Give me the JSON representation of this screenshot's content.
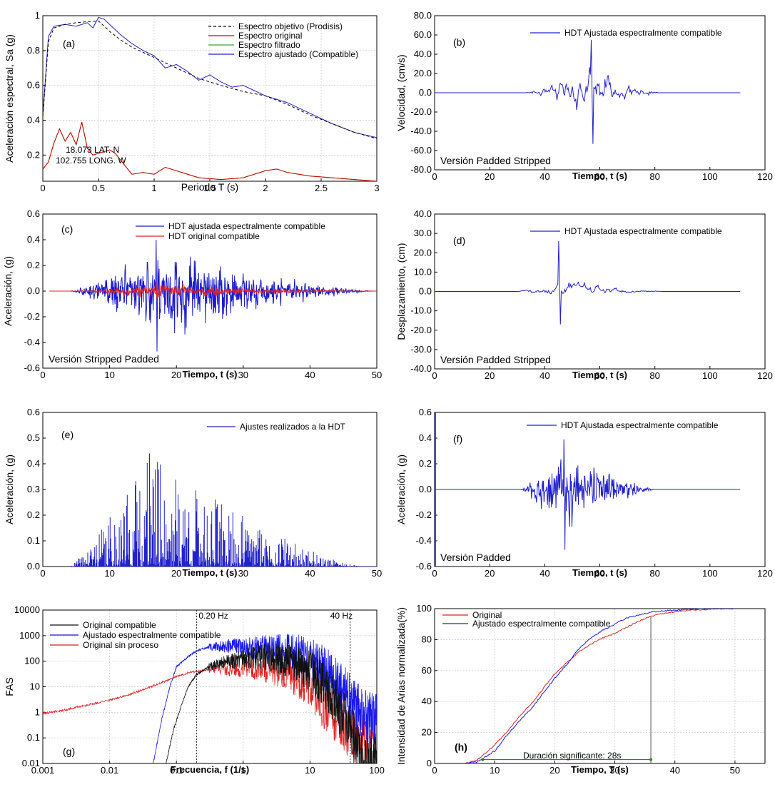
{
  "chart_data": [
    {
      "id": "a",
      "type": "line",
      "panel_label": "(a)",
      "xlabel": "Periodo T (s)",
      "ylabel": "Aceleración espectral, Sa (g)",
      "xlim": [
        0,
        3
      ],
      "ylim": [
        0.05,
        1.0
      ],
      "xticks": [
        0,
        0.5,
        1,
        1.5,
        2,
        2.5,
        3
      ],
      "xtick_labels": [
        "0",
        "0.5",
        "1",
        "1.5",
        "2",
        "2.5",
        "3"
      ],
      "yticks": [
        0.2,
        0.4,
        0.6,
        0.8,
        1
      ],
      "ytick_labels": [
        "0.2",
        "0.4",
        "0.6",
        "0.8",
        "1"
      ],
      "grid": true,
      "legend_position": "top-right",
      "annotations": [
        "18.073 LAT. N",
        "102.755 LONG. W"
      ],
      "series": [
        {
          "name": "Espectro objetivo (Prodisis)",
          "color": "#000000",
          "dash": true,
          "x": [
            0.0,
            0.05,
            0.1,
            0.2,
            0.3,
            0.4,
            0.5,
            0.6,
            0.7,
            0.8,
            0.9,
            1.0,
            1.2,
            1.4,
            1.6,
            1.8,
            2.0,
            2.2,
            2.4,
            2.6,
            2.8,
            3.0
          ],
          "y": [
            0.42,
            0.85,
            0.93,
            0.95,
            0.96,
            0.965,
            0.97,
            0.91,
            0.86,
            0.82,
            0.79,
            0.76,
            0.7,
            0.64,
            0.6,
            0.565,
            0.54,
            0.49,
            0.43,
            0.38,
            0.33,
            0.295
          ]
        },
        {
          "name": "Espectro original",
          "color": "#cc0000",
          "dash": false,
          "x": [
            0.0,
            0.05,
            0.1,
            0.15,
            0.2,
            0.25,
            0.3,
            0.35,
            0.4,
            0.45,
            0.5,
            0.55,
            0.6,
            0.65,
            0.7,
            0.8,
            0.9,
            1.0,
            1.1,
            1.2,
            1.4,
            1.6,
            1.8,
            2.0,
            2.1,
            2.2,
            2.4,
            2.6,
            2.8,
            3.0
          ],
          "y": [
            0.12,
            0.16,
            0.27,
            0.35,
            0.28,
            0.33,
            0.26,
            0.39,
            0.24,
            0.2,
            0.21,
            0.22,
            0.23,
            0.21,
            0.17,
            0.09,
            0.1,
            0.09,
            0.13,
            0.11,
            0.07,
            0.06,
            0.07,
            0.11,
            0.12,
            0.1,
            0.08,
            0.07,
            0.06,
            0.05
          ]
        },
        {
          "name": "Espectro filtrado",
          "color": "#33aa33",
          "dash": false,
          "x": [
            0.0,
            0.05,
            0.1,
            0.15,
            0.2,
            0.25,
            0.3,
            0.35,
            0.4,
            0.45,
            0.5,
            0.55,
            0.6,
            0.65,
            0.7,
            0.8,
            0.9,
            1.0,
            1.1,
            1.2,
            1.4,
            1.6,
            1.8,
            2.0,
            2.1,
            2.2,
            2.4,
            2.6,
            2.8,
            3.0
          ],
          "y": [
            0.12,
            0.16,
            0.27,
            0.35,
            0.28,
            0.33,
            0.26,
            0.39,
            0.24,
            0.2,
            0.21,
            0.22,
            0.23,
            0.21,
            0.17,
            0.09,
            0.1,
            0.09,
            0.13,
            0.11,
            0.07,
            0.06,
            0.07,
            0.11,
            0.12,
            0.1,
            0.08,
            0.07,
            0.06,
            0.05
          ]
        },
        {
          "name": "Espectro ajustado (Compatible)",
          "color": "#2222cc",
          "dash": false,
          "x": [
            0.0,
            0.05,
            0.1,
            0.2,
            0.3,
            0.4,
            0.45,
            0.5,
            0.55,
            0.6,
            0.7,
            0.8,
            0.9,
            1.0,
            1.1,
            1.2,
            1.3,
            1.4,
            1.5,
            1.6,
            1.7,
            1.8,
            1.9,
            2.0,
            2.2,
            2.4,
            2.6,
            2.8,
            3.0
          ],
          "y": [
            0.42,
            0.88,
            0.94,
            0.95,
            0.94,
            0.96,
            0.93,
            0.99,
            0.98,
            0.95,
            0.89,
            0.84,
            0.8,
            0.77,
            0.7,
            0.72,
            0.68,
            0.63,
            0.66,
            0.62,
            0.59,
            0.6,
            0.57,
            0.54,
            0.5,
            0.44,
            0.38,
            0.33,
            0.3
          ]
        }
      ]
    },
    {
      "id": "b",
      "type": "line",
      "panel_label": "(b)",
      "xlabel": "Tiempo, t (s)",
      "ylabel": "Velocidad, (cm/s)",
      "xlim": [
        0,
        120
      ],
      "ylim": [
        -80,
        80
      ],
      "xticks": [
        0,
        20,
        40,
        60,
        80,
        100,
        120
      ],
      "xtick_labels": [
        "0",
        "20",
        "40",
        "60",
        "80",
        "100",
        "120"
      ],
      "yticks": [
        -80,
        -60,
        -40,
        -20,
        0,
        20,
        40,
        60,
        80
      ],
      "ytick_labels": [
        "-80.0",
        "-60.0",
        "-40.0",
        "-20.0",
        "0.0",
        "20.0",
        "40.0",
        "60.0",
        "80.0"
      ],
      "grid": false,
      "legend_position": "top-right",
      "annotation": "Versión Padded Stripped",
      "signal": {
        "t0": 0,
        "t1": 111,
        "active_start": 33,
        "active_end": 83,
        "peak_time": 57,
        "peak": 55,
        "min": -53,
        "seed": 11
      },
      "series": [
        {
          "name": "HDT Ajustada espectralmente compatible",
          "color": "#2222cc"
        }
      ]
    },
    {
      "id": "c",
      "type": "line",
      "panel_label": "(c)",
      "xlabel": "Tiempo, t (s)",
      "ylabel": "Aceleración, (g)",
      "xlim": [
        0,
        50
      ],
      "ylim": [
        -0.6,
        0.6
      ],
      "xticks": [
        0,
        10,
        20,
        30,
        40,
        50
      ],
      "xtick_labels": [
        "0",
        "10",
        "20",
        "30",
        "40",
        "50"
      ],
      "yticks": [
        -0.6,
        -0.4,
        -0.2,
        0,
        0.2,
        0.4,
        0.6
      ],
      "ytick_labels": [
        "-0.6",
        "-0.4",
        "-0.2",
        "0.0",
        "0.2",
        "0.4",
        "0.6"
      ],
      "grid": false,
      "legend_position": "top-right",
      "annotation": "Versión Stripped Padded",
      "series": [
        {
          "name": "HDT ajustada espectralmente compatible",
          "color": "#1a1acc",
          "peak": 0.4,
          "min": -0.47,
          "seed": 21
        },
        {
          "name": "HDT original compatible",
          "color": "#dd2222",
          "peak": 0.07,
          "min": -0.07,
          "seed": 22
        }
      ],
      "signal": {
        "t0": 1,
        "t1": 50,
        "active_start": 4,
        "active_end": 50,
        "peak_time": 17
      }
    },
    {
      "id": "d",
      "type": "line",
      "panel_label": "(d)",
      "xlabel": "Tiempo, t (s)",
      "ylabel": "Desplazamiento, (cm)",
      "xlim": [
        0,
        120
      ],
      "ylim": [
        -40,
        40
      ],
      "xticks": [
        0,
        20,
        40,
        60,
        80,
        100,
        120
      ],
      "xtick_labels": [
        "0",
        "20",
        "40",
        "60",
        "80",
        "100",
        "120"
      ],
      "yticks": [
        -40,
        -30,
        -20,
        -10,
        0,
        10,
        20,
        30,
        40
      ],
      "ytick_labels": [
        "-40.0",
        "-30.0",
        "-20.0",
        "-10.0",
        "0.0",
        "10.0",
        "20.0",
        "30.0",
        "40.0"
      ],
      "grid": false,
      "legend_position": "top-right",
      "annotation": "Versión Padded Stripped",
      "signal": {
        "t0": 0,
        "t1": 111,
        "active_start": 30,
        "active_end": 84,
        "peak_time": 45,
        "peak": 26,
        "min": -17,
        "seed": 31
      },
      "series": [
        {
          "name": "HDT Ajustada espectralmente compatible",
          "color": "#2222cc"
        }
      ]
    },
    {
      "id": "e",
      "type": "bar",
      "panel_label": "(e)",
      "xlabel": "Tiempo, t (s)",
      "ylabel": "Aceleración, (g)",
      "xlim": [
        0,
        50
      ],
      "ylim": [
        0,
        0.6
      ],
      "xticks": [
        0,
        10,
        20,
        30,
        40,
        50
      ],
      "xtick_labels": [
        "0",
        "10",
        "20",
        "30",
        "40",
        "50"
      ],
      "yticks": [
        0,
        0.1,
        0.2,
        0.3,
        0.4,
        0.5,
        0.6
      ],
      "ytick_labels": [
        "0.0",
        "0.1",
        "0.2",
        "0.3",
        "0.4",
        "0.5",
        "0.6"
      ],
      "grid": false,
      "legend_position": "top-right",
      "signal": {
        "t0": 4,
        "t1": 50,
        "peak_time": 16,
        "peak": 0.44,
        "seed": 41
      },
      "series": [
        {
          "name": "Ajustes realizados a la HDT",
          "color": "#2222cc"
        }
      ]
    },
    {
      "id": "f",
      "type": "line",
      "panel_label": "(f)",
      "xlabel": "Tiempo, t (s)",
      "ylabel": "Aceleración, (g)",
      "xlim": [
        0,
        120
      ],
      "ylim": [
        -0.6,
        0.6
      ],
      "xticks": [
        0,
        20,
        40,
        60,
        80,
        100,
        120
      ],
      "xtick_labels": [
        "0",
        "20",
        "40",
        "60",
        "80",
        "100",
        "120"
      ],
      "yticks": [
        -0.6,
        -0.4,
        -0.2,
        0,
        0.2,
        0.4,
        0.6
      ],
      "ytick_labels": [
        "-0.6",
        "-0.4",
        "-0.2",
        "0.0",
        "0.2",
        "0.4",
        "0.6"
      ],
      "grid": false,
      "legend_position": "top-right",
      "annotation": "Versión Padded",
      "signal": {
        "t0": 0,
        "t1": 111,
        "active_start": 31,
        "active_end": 81,
        "peak_time": 47,
        "peak": 0.39,
        "min": -0.47,
        "seed": 51
      },
      "series": [
        {
          "name": "HDT Ajustada espectralmente compatible",
          "color": "#2222cc"
        }
      ]
    },
    {
      "id": "g",
      "type": "line",
      "panel_label": "(g)",
      "xlabel": "Frecuencia, f (1/s)",
      "ylabel": "FAS",
      "xscale": "log",
      "yscale": "log",
      "xlim": [
        0.001,
        100
      ],
      "ylim": [
        0.01,
        10000
      ],
      "xticks": [
        0.001,
        0.01,
        0.1,
        1,
        10,
        100
      ],
      "xtick_labels": [
        "0.001",
        "0.01",
        "0.1",
        "1",
        "10",
        "100"
      ],
      "yticks": [
        0.01,
        0.1,
        1,
        10,
        100,
        1000,
        10000
      ],
      "ytick_labels": [
        "0.01",
        "0.1",
        "1",
        "10",
        "100",
        "1000",
        "10000"
      ],
      "grid": true,
      "legend_position": "top-left",
      "vlines": [
        {
          "x": 0.2,
          "label": "0.20 Hz"
        },
        {
          "x": 40,
          "label": "40 Hz"
        }
      ],
      "series": [
        {
          "name": "Original compatible",
          "color": "#111111",
          "f": [
            0.07,
            0.09,
            0.12,
            0.15,
            0.2,
            0.3,
            0.5,
            0.8,
            1,
            2,
            3,
            5,
            8,
            10,
            15,
            20,
            30,
            40,
            50,
            60,
            80,
            100
          ],
          "y": [
            0.01,
            0.2,
            2,
            10,
            30,
            60,
            90,
            110,
            130,
            150,
            130,
            100,
            60,
            40,
            15,
            5,
            1,
            0.3,
            0.05,
            0.02,
            0.01,
            0.01
          ]
        },
        {
          "name": "Ajustado espectralmente compatible",
          "color": "#1a1aee",
          "f": [
            0.045,
            0.06,
            0.08,
            0.1,
            0.15,
            0.2,
            0.3,
            0.5,
            0.7,
            1,
            2,
            3,
            5,
            8,
            10,
            15,
            20,
            30,
            40,
            50,
            70,
            100
          ],
          "y": [
            0.01,
            0.5,
            10,
            60,
            150,
            250,
            350,
            380,
            390,
            350,
            330,
            300,
            250,
            180,
            130,
            60,
            30,
            8,
            3,
            1.5,
            0.8,
            0.5
          ]
        },
        {
          "name": "Original sin proceso",
          "color": "#dd2222",
          "f": [
            0.001,
            0.002,
            0.005,
            0.01,
            0.02,
            0.05,
            0.1,
            0.15,
            0.2,
            0.3,
            0.5,
            1,
            2,
            3,
            5,
            8,
            10,
            15,
            20,
            30,
            40,
            50,
            70,
            100
          ],
          "y": [
            0.9,
            1.2,
            2,
            3,
            5,
            12,
            25,
            35,
            40,
            45,
            48,
            50,
            45,
            40,
            30,
            15,
            8,
            2,
            0.8,
            0.3,
            0.15,
            0.1,
            0.08,
            0.05
          ]
        }
      ]
    },
    {
      "id": "h",
      "type": "line",
      "panel_label": "(h)",
      "xlabel": "Tiempo, T (s)",
      "ylabel": "Intensidad de Arias normalizada(%)",
      "xlim": [
        0,
        55
      ],
      "ylim": [
        0,
        100
      ],
      "xticks": [
        0,
        10,
        20,
        30,
        40,
        50
      ],
      "xtick_labels": [
        "0",
        "10",
        "20",
        "30",
        "40",
        "50"
      ],
      "yticks": [
        0,
        20,
        40,
        60,
        80,
        100
      ],
      "ytick_labels": [
        "0",
        "20",
        "40",
        "60",
        "80",
        "100"
      ],
      "grid": true,
      "legend_position": "top-left",
      "duration_label": "Duración significante: 28s",
      "duration_range": [
        8,
        36
      ],
      "series": [
        {
          "name": "Original",
          "color": "#dd2222",
          "x": [
            5,
            7,
            8,
            10,
            12,
            14,
            16,
            18,
            20,
            22,
            24,
            26,
            28,
            30,
            32,
            34,
            36,
            38,
            40,
            42,
            45,
            48,
            50
          ],
          "y": [
            0,
            2,
            5,
            12,
            20,
            30,
            38,
            48,
            58,
            65,
            72,
            77,
            81,
            84,
            88,
            92,
            95,
            97,
            98,
            99,
            99.5,
            100,
            100
          ]
        },
        {
          "name": "Ajustado espectralmente compatible",
          "color": "#1a1aee",
          "x": [
            5,
            7,
            8,
            10,
            12,
            14,
            16,
            18,
            20,
            22,
            24,
            26,
            28,
            30,
            32,
            34,
            36,
            38,
            40,
            42,
            45,
            48,
            50
          ],
          "y": [
            0,
            1,
            3,
            8,
            18,
            27,
            35,
            45,
            55,
            64,
            74,
            81,
            86,
            90,
            94,
            96,
            97.5,
            98.5,
            99,
            99.5,
            100,
            100,
            100
          ]
        }
      ]
    }
  ]
}
